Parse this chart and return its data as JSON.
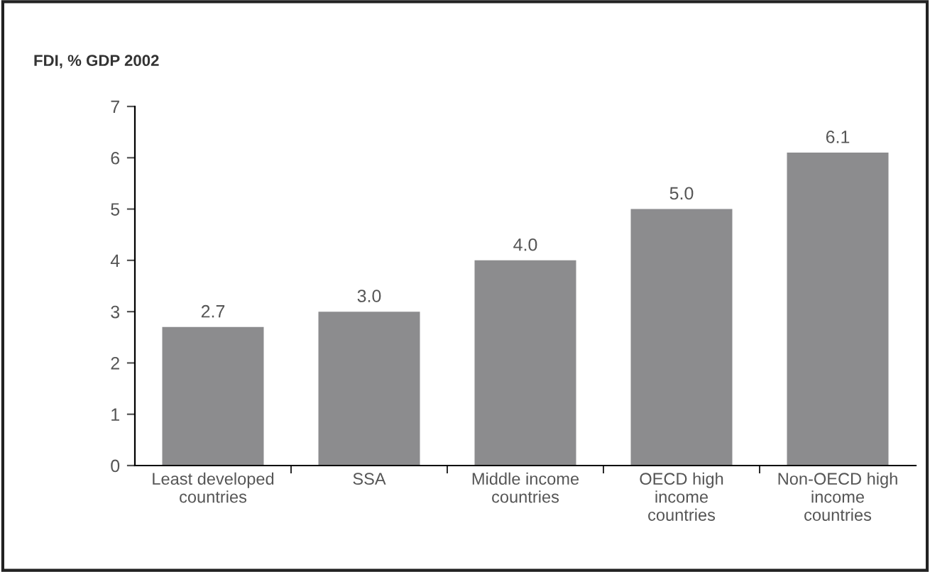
{
  "chart_data": {
    "type": "bar",
    "title": "FDI, % GDP 2002",
    "categories": [
      "Least developed\ncountries",
      "SSA",
      "Middle income\ncountries",
      "OECD high\nincome\ncountries",
      "Non-OECD high\nincome\ncountries"
    ],
    "values": [
      2.7,
      3.0,
      4.0,
      5.0,
      6.1
    ],
    "color": "#8c8c8e",
    "value_labels": [
      "2.7",
      "3.0",
      "4.0",
      "5.0",
      "6.1"
    ],
    "ylim": [
      0,
      7
    ],
    "yticks": [
      0,
      1,
      2,
      3,
      4,
      5,
      6,
      7
    ],
    "grid": false,
    "legend": false
  }
}
